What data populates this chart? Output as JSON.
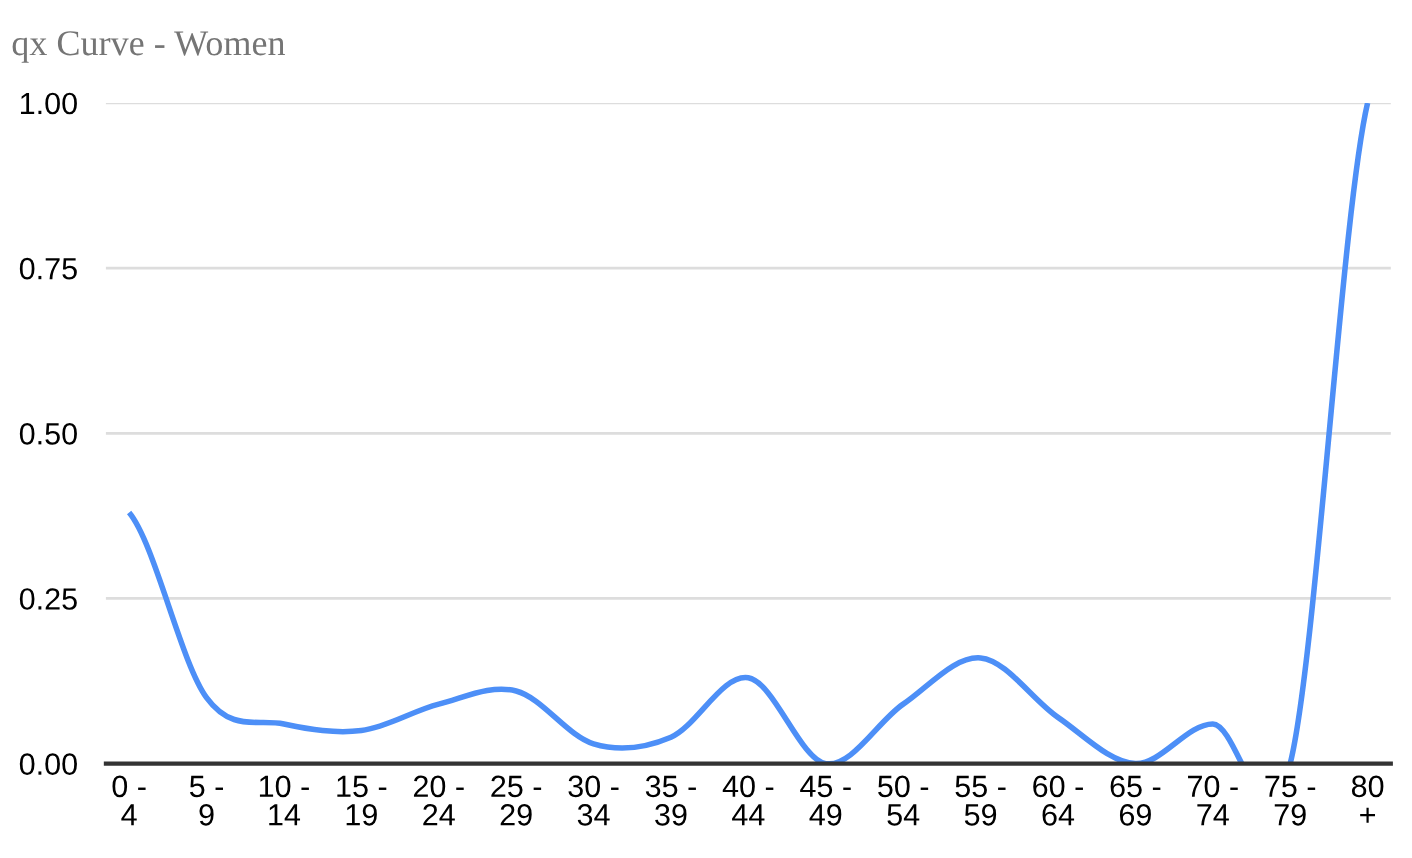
{
  "chart_data": {
    "type": "line",
    "title": "qx Curve - Women",
    "categories": [
      "0 -\n4",
      "5 -\n9",
      "10 -\n14",
      "15 -\n19",
      "20 -\n24",
      "25 -\n29",
      "30 -\n34",
      "35 -\n39",
      "40 -\n44",
      "45 -\n49",
      "50 -\n54",
      "55 -\n59",
      "60 -\n64",
      "65 -\n69",
      "70 -\n74",
      "75 -\n79",
      "80\n+"
    ],
    "series": [
      {
        "color": "#4d8ff7",
        "values": [
          0.38,
          0.1,
          0.06,
          0.05,
          0.09,
          0.11,
          0.03,
          0.04,
          0.13,
          0.0,
          0.09,
          0.16,
          0.07,
          0.0,
          0.06,
          0.0,
          1.0
        ]
      }
    ],
    "ylim": [
      0,
      1
    ],
    "yticks": [
      {
        "value": 0,
        "label": "0.00"
      },
      {
        "value": 0.25,
        "label": "0.25"
      },
      {
        "value": 0.5,
        "label": "0.50"
      },
      {
        "value": 0.75,
        "label": "0.75"
      },
      {
        "value": 1,
        "label": "1.00"
      }
    ],
    "grid": "y",
    "marker": "none",
    "line_style": "solid"
  }
}
